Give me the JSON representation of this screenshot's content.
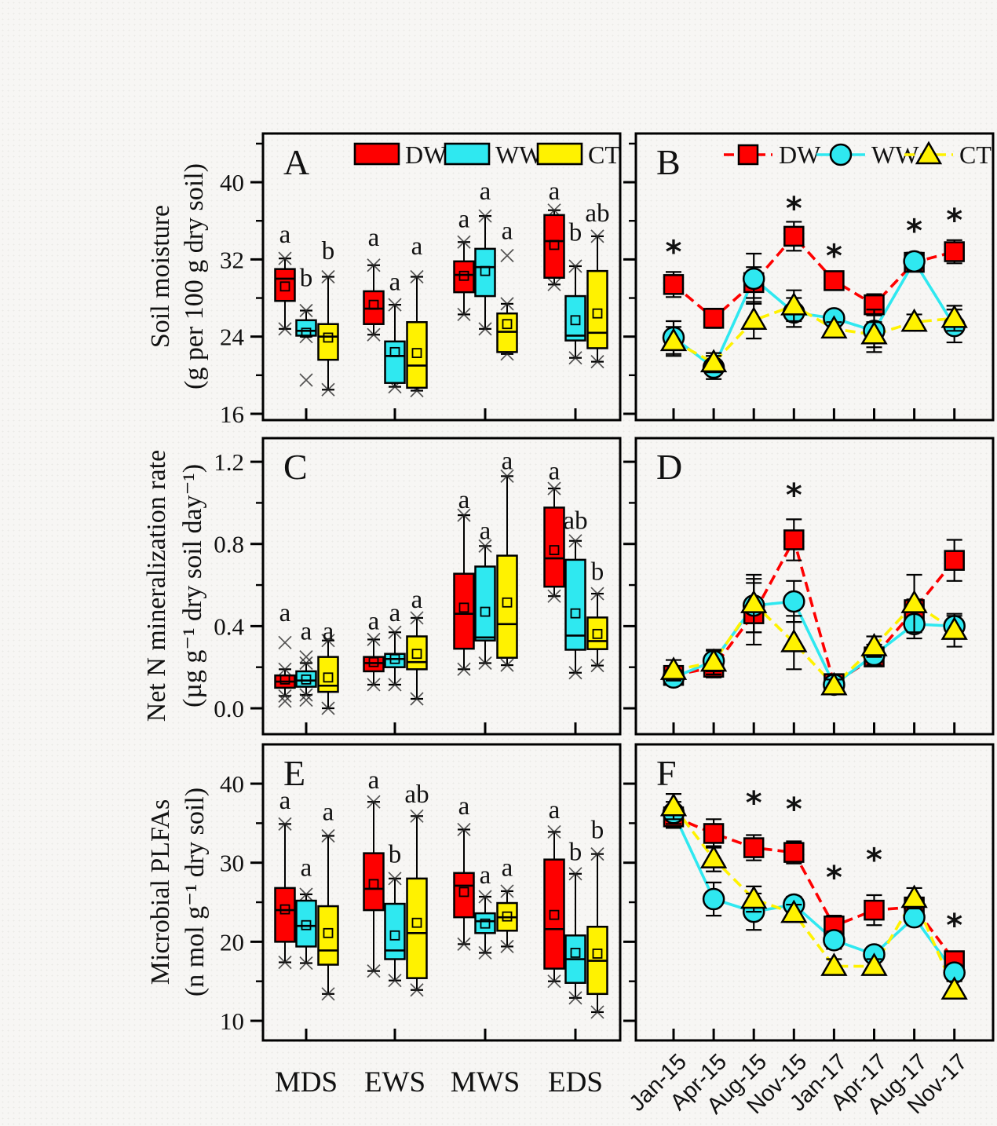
{
  "figure_bg": "#f7f6f4",
  "treatments": [
    {
      "key": "DW",
      "label": "DW",
      "color": "#fe0000",
      "marker": "square",
      "line_dash": "13 7"
    },
    {
      "key": "WW",
      "label": "WW",
      "color": "#2fe8f0",
      "marker": "circle",
      "line_dash": ""
    },
    {
      "key": "CT",
      "label": "CT",
      "color": "#fff200",
      "marker": "triangle",
      "line_dash": "13 7"
    }
  ],
  "ylabels": [
    {
      "line1": "Soil moisture",
      "line2": "(g per 100 g dry soil)"
    },
    {
      "line1": "Net N mineralization rate",
      "line2": "(µg g⁻¹ dry soil day⁻¹)"
    },
    {
      "line1": "Microbial PLFAs",
      "line2": "(n mol g⁻¹ dry soil)"
    }
  ],
  "left_categories": [
    "MDS",
    "EWS",
    "MWS",
    "EDS"
  ],
  "time_categories": [
    "Jan-15",
    "Apr-15",
    "Aug-15",
    "Nov-15",
    "Jan-17",
    "Apr-17",
    "Aug-17",
    "Nov-17"
  ],
  "chart_data": [
    {
      "id": "A",
      "letter": "A",
      "type": "box",
      "row": 0,
      "col": 0,
      "title": "Soil moisture by season",
      "ylim": [
        15.35,
        45.05
      ],
      "yticks": [
        {
          "v": 16,
          "label": "16"
        },
        {
          "v": 24,
          "label": "24"
        },
        {
          "v": 32,
          "label": "32"
        },
        {
          "v": 40,
          "label": "40"
        }
      ],
      "yminors": [
        20,
        28,
        36,
        44
      ],
      "groups": [
        {
          "name": "MDS",
          "boxes": [
            {
              "t": "DW",
              "lo": 24.8,
              "q1": 27.7,
              "med": 30.0,
              "mean": 29.2,
              "q3": 31.0,
              "hi": 32.1,
              "sig": "a",
              "sv": 34.7
            },
            {
              "t": "WW",
              "lo": 24.0,
              "q1": 24.1,
              "med": 24.6,
              "mean": 24.4,
              "q3": 25.7,
              "hi": 26.7,
              "xlo": 19.5,
              "sig": "b",
              "sv": 30.2
            },
            {
              "t": "CT",
              "lo": 18.5,
              "q1": 21.6,
              "med": 24.0,
              "mean": 23.9,
              "q3": 25.3,
              "hi": 30.2,
              "sig": "b",
              "sv": 33.0
            }
          ]
        },
        {
          "name": "EWS",
          "boxes": [
            {
              "t": "DW",
              "lo": 24.2,
              "q1": 25.3,
              "med": 26.9,
              "mean": 27.3,
              "q3": 28.7,
              "hi": 31.4,
              "sig": "a",
              "sv": 34.4
            },
            {
              "t": "WW",
              "lo": 18.8,
              "q1": 19.2,
              "med": 22.0,
              "mean": 22.4,
              "q3": 23.5,
              "hi": 27.3,
              "sig": "a",
              "sv": 29.8
            },
            {
              "t": "CT",
              "lo": 18.4,
              "q1": 18.7,
              "med": 21.0,
              "mean": 22.3,
              "q3": 25.5,
              "hi": 30.2,
              "sig": "a",
              "sv": 33.5
            }
          ]
        },
        {
          "name": "MWS",
          "boxes": [
            {
              "t": "DW",
              "lo": 26.3,
              "q1": 28.6,
              "med": 30.4,
              "mean": 30.3,
              "q3": 31.8,
              "hi": 33.8,
              "sig": "a",
              "sv": 36.3
            },
            {
              "t": "WW",
              "lo": 24.8,
              "q1": 28.2,
              "med": 31.2,
              "mean": 30.8,
              "q3": 33.1,
              "hi": 36.5,
              "sig": "a",
              "sv": 39.2
            },
            {
              "t": "CT",
              "lo": 22.2,
              "q1": 22.4,
              "med": 24.5,
              "mean": 25.3,
              "q3": 26.4,
              "hi": 27.4,
              "xhi": 32.4,
              "sig": "a",
              "sv": 35.1
            }
          ]
        },
        {
          "name": "EDS",
          "boxes": [
            {
              "t": "DW",
              "lo": 29.4,
              "q1": 30.1,
              "med": 33.9,
              "mean": 33.5,
              "q3": 36.6,
              "hi": 37.1,
              "sig": "a",
              "sv": 39.2
            },
            {
              "t": "WW",
              "lo": 21.8,
              "q1": 23.6,
              "med": 24.1,
              "mean": 25.7,
              "q3": 28.2,
              "hi": 31.3,
              "sig": "b",
              "sv": 34.9
            },
            {
              "t": "CT",
              "lo": 21.4,
              "q1": 22.8,
              "med": 24.4,
              "mean": 26.4,
              "q3": 30.8,
              "hi": 34.4,
              "sig": "ab",
              "sv": 36.9
            }
          ]
        }
      ]
    },
    {
      "id": "B",
      "letter": "B",
      "type": "line",
      "row": 0,
      "col": 1,
      "title": "Soil moisture time series",
      "ylim": [
        15.35,
        45.05
      ],
      "yticks": [
        {
          "v": 16,
          "label": "16"
        },
        {
          "v": 24,
          "label": "24"
        },
        {
          "v": 32,
          "label": "32"
        },
        {
          "v": 40,
          "label": "40"
        }
      ],
      "yminors": [
        20,
        28,
        36,
        44
      ],
      "series": [
        {
          "name": "DW",
          "values": [
            29.4,
            25.9,
            29.6,
            34.4,
            29.8,
            27.3,
            31.7,
            32.8
          ],
          "err": [
            1.3,
            1.0,
            1.6,
            1.5,
            0.9,
            1.1,
            0.6,
            1.2
          ]
        },
        {
          "name": "WW",
          "values": [
            23.9,
            20.8,
            30.0,
            26.5,
            25.9,
            24.6,
            31.8,
            25.1
          ],
          "err": [
            1.7,
            1.2,
            2.6,
            1.5,
            0.6,
            2.2,
            0.9,
            1.7
          ]
        },
        {
          "name": "CT",
          "values": [
            23.5,
            21.3,
            25.7,
            27.2,
            24.8,
            24.2,
            25.5,
            25.9
          ],
          "err": [
            1.5,
            1.0,
            1.9,
            1.6,
            0.7,
            1.3,
            0.8,
            1.3
          ]
        }
      ],
      "stars": [
        {
          "i": 0,
          "v": 32.8
        },
        {
          "i": 3,
          "v": 37.3
        },
        {
          "i": 4,
          "v": 32.4
        },
        {
          "i": 6,
          "v": 35.0
        },
        {
          "i": 7,
          "v": 36.1
        }
      ]
    },
    {
      "id": "C",
      "letter": "C",
      "type": "box",
      "row": 1,
      "col": 0,
      "title": "Net N mineralization rate by season",
      "ylim": [
        -0.126,
        1.315
      ],
      "yticks": [
        {
          "v": 0.0,
          "label": "0.0"
        },
        {
          "v": 0.4,
          "label": "0.4"
        },
        {
          "v": 0.8,
          "label": "0.8"
        },
        {
          "v": 1.2,
          "label": "1.2"
        }
      ],
      "yminors": [
        0.2,
        0.6,
        1.0
      ],
      "groups": [
        {
          "name": "MDS",
          "boxes": [
            {
              "t": "DW",
              "lo": 0.06,
              "q1": 0.1,
              "med": 0.13,
              "mean": 0.14,
              "q3": 0.16,
              "hi": 0.19,
              "xlo": 0.035,
              "xhi": 0.32,
              "sig": "a",
              "sv": 0.47
            },
            {
              "t": "WW",
              "lo": 0.065,
              "q1": 0.105,
              "med": 0.135,
              "mean": 0.14,
              "q3": 0.18,
              "hi": 0.22,
              "xlo": 0.04,
              "xhi": 0.25,
              "sig": "a",
              "sv": 0.38
            },
            {
              "t": "CT",
              "lo": 0.0,
              "q1": 0.08,
              "med": 0.11,
              "mean": 0.15,
              "q3": 0.25,
              "hi": 0.33,
              "sig": "a",
              "sv": 0.38
            }
          ]
        },
        {
          "name": "EWS",
          "boxes": [
            {
              "t": "DW",
              "lo": 0.115,
              "q1": 0.18,
              "med": 0.22,
              "mean": 0.225,
              "q3": 0.25,
              "hi": 0.335,
              "sig": "a",
              "sv": 0.43
            },
            {
              "t": "WW",
              "lo": 0.115,
              "q1": 0.2,
              "med": 0.24,
              "mean": 0.24,
              "q3": 0.265,
              "hi": 0.37,
              "sig": "a",
              "sv": 0.47
            },
            {
              "t": "CT",
              "lo": 0.046,
              "q1": 0.19,
              "med": 0.225,
              "mean": 0.265,
              "q3": 0.35,
              "hi": 0.44,
              "sig": "a",
              "sv": 0.535
            }
          ]
        },
        {
          "name": "MWS",
          "boxes": [
            {
              "t": "DW",
              "lo": 0.19,
              "q1": 0.29,
              "med": 0.46,
              "mean": 0.49,
              "q3": 0.655,
              "hi": 0.94,
              "sig": "a",
              "sv": 1.02
            },
            {
              "t": "WW",
              "lo": 0.22,
              "q1": 0.33,
              "med": 0.345,
              "mean": 0.47,
              "q3": 0.69,
              "hi": 0.79,
              "sig": "a",
              "sv": 0.87
            },
            {
              "t": "CT",
              "lo": 0.21,
              "q1": 0.246,
              "med": 0.41,
              "mean": 0.515,
              "q3": 0.743,
              "hi": 1.13,
              "sig": "a",
              "sv": 1.21
            }
          ]
        },
        {
          "name": "EDS",
          "boxes": [
            {
              "t": "DW",
              "lo": 0.546,
              "q1": 0.592,
              "med": 0.73,
              "mean": 0.77,
              "q3": 0.977,
              "hi": 1.07,
              "sig": "a",
              "sv": 1.16
            },
            {
              "t": "WW",
              "lo": 0.173,
              "q1": 0.285,
              "med": 0.354,
              "mean": 0.462,
              "q3": 0.723,
              "hi": 0.815,
              "sig": "ab",
              "sv": 0.92
            },
            {
              "t": "CT",
              "lo": 0.208,
              "q1": 0.288,
              "med": 0.327,
              "mean": 0.362,
              "q3": 0.442,
              "hi": 0.558,
              "sig": "b",
              "sv": 0.67
            }
          ]
        }
      ]
    },
    {
      "id": "D",
      "letter": "D",
      "type": "line",
      "row": 1,
      "col": 1,
      "title": "Net N mineralization rate time series",
      "ylim": [
        -0.126,
        1.315
      ],
      "yticks": [
        {
          "v": 0.0,
          "label": "0.0"
        },
        {
          "v": 0.4,
          "label": "0.4"
        },
        {
          "v": 0.8,
          "label": "0.8"
        },
        {
          "v": 1.2,
          "label": "1.2"
        }
      ],
      "yminors": [
        0.2,
        0.6,
        1.0
      ],
      "series": [
        {
          "name": "DW",
          "values": [
            0.16,
            0.2,
            0.46,
            0.82,
            0.12,
            0.25,
            0.48,
            0.72
          ],
          "err": [
            0.03,
            0.05,
            0.15,
            0.1,
            0.03,
            0.04,
            0.05,
            0.1
          ]
        },
        {
          "name": "WW",
          "values": [
            0.15,
            0.23,
            0.5,
            0.52,
            0.115,
            0.26,
            0.41,
            0.4
          ],
          "err": [
            0.03,
            0.05,
            0.13,
            0.1,
            0.03,
            0.05,
            0.07,
            0.05
          ]
        },
        {
          "name": "CT",
          "values": [
            0.185,
            0.225,
            0.51,
            0.32,
            0.11,
            0.3,
            0.51,
            0.38
          ],
          "err": [
            0.05,
            0.06,
            0.14,
            0.13,
            0.03,
            0.05,
            0.14,
            0.08
          ]
        }
      ],
      "stars": [
        {
          "i": 3,
          "v": 1.04
        }
      ]
    },
    {
      "id": "E",
      "letter": "E",
      "type": "box",
      "row": 2,
      "col": 0,
      "title": "Microbial PLFAs by season",
      "ylim": [
        7.52,
        44.97
      ],
      "yticks": [
        {
          "v": 10,
          "label": "10"
        },
        {
          "v": 20,
          "label": "20"
        },
        {
          "v": 30,
          "label": "30"
        },
        {
          "v": 40,
          "label": "40"
        }
      ],
      "yminors": [
        15,
        25,
        35
      ],
      "groups": [
        {
          "name": "MDS",
          "boxes": [
            {
              "t": "DW",
              "lo": 17.4,
              "q1": 20.0,
              "med": 24.0,
              "mean": 24.1,
              "q3": 26.8,
              "hi": 34.9,
              "sig": "a",
              "sv": 38.0
            },
            {
              "t": "WW",
              "lo": 17.3,
              "q1": 19.4,
              "med": 22.0,
              "mean": 22.1,
              "q3": 25.2,
              "hi": 26.0,
              "sig": "a",
              "sv": 29.5
            },
            {
              "t": "CT",
              "lo": 13.4,
              "q1": 17.1,
              "med": 18.9,
              "mean": 21.1,
              "q3": 24.5,
              "hi": 33.4,
              "sig": "a",
              "sv": 36.6
            }
          ]
        },
        {
          "name": "EWS",
          "boxes": [
            {
              "t": "DW",
              "lo": 16.3,
              "q1": 24.0,
              "med": 26.7,
              "mean": 27.3,
              "q3": 31.2,
              "hi": 37.7,
              "sig": "a",
              "sv": 40.6
            },
            {
              "t": "WW",
              "lo": 15.1,
              "q1": 17.8,
              "med": 18.9,
              "mean": 20.8,
              "q3": 24.8,
              "hi": 28.0,
              "sig": "b",
              "sv": 31.2
            },
            {
              "t": "CT",
              "lo": 13.9,
              "q1": 15.4,
              "med": 21.1,
              "mean": 22.4,
              "q3": 28.0,
              "hi": 35.9,
              "sig": "ab",
              "sv": 38.8
            }
          ]
        },
        {
          "name": "MWS",
          "boxes": [
            {
              "t": "DW",
              "lo": 19.7,
              "q1": 23.1,
              "med": 27.1,
              "mean": 26.3,
              "q3": 28.7,
              "hi": 34.2,
              "sig": "a",
              "sv": 37.3
            },
            {
              "t": "WW",
              "lo": 18.6,
              "q1": 21.1,
              "med": 22.6,
              "mean": 22.3,
              "q3": 23.6,
              "hi": 25.7,
              "sig": "a",
              "sv": 28.6
            },
            {
              "t": "CT",
              "lo": 19.4,
              "q1": 21.4,
              "med": 23.1,
              "mean": 23.2,
              "q3": 24.9,
              "hi": 26.4,
              "sig": "a",
              "sv": 29.5
            }
          ]
        },
        {
          "name": "EDS",
          "boxes": [
            {
              "t": "DW",
              "lo": 15.0,
              "q1": 16.6,
              "med": 21.6,
              "mean": 23.4,
              "q3": 30.4,
              "hi": 33.9,
              "sig": "a",
              "sv": 36.8
            },
            {
              "t": "WW",
              "lo": 12.9,
              "q1": 14.8,
              "med": 17.8,
              "mean": 18.6,
              "q3": 20.8,
              "hi": 28.6,
              "sig": "b",
              "sv": 31.5
            },
            {
              "t": "CT",
              "lo": 11.1,
              "q1": 13.4,
              "med": 17.6,
              "mean": 18.5,
              "q3": 21.9,
              "hi": 31.1,
              "sig": "b",
              "sv": 34.3
            }
          ]
        }
      ]
    },
    {
      "id": "F",
      "letter": "F",
      "type": "line",
      "row": 2,
      "col": 1,
      "title": "Microbial PLFAs time series",
      "ylim": [
        7.52,
        44.97
      ],
      "yticks": [
        {
          "v": 10,
          "label": "10"
        },
        {
          "v": 20,
          "label": "20"
        },
        {
          "v": 30,
          "label": "30"
        },
        {
          "v": 40,
          "label": "40"
        }
      ],
      "yminors": [
        15,
        25,
        35
      ],
      "series": [
        {
          "name": "DW",
          "values": [
            35.8,
            33.7,
            31.9,
            31.3,
            22.0,
            24.0,
            24.4,
            17.6
          ],
          "err": [
            1.4,
            1.8,
            1.6,
            1.4,
            1.3,
            1.9,
            0.9,
            1.1
          ]
        },
        {
          "name": "WW",
          "values": [
            36.3,
            25.4,
            23.8,
            24.7,
            20.2,
            18.4,
            23.1,
            16.1
          ],
          "err": [
            1.4,
            2.1,
            2.3,
            1.0,
            1.1,
            0.9,
            1.0,
            1.0
          ]
        },
        {
          "name": "CT",
          "values": [
            37.1,
            30.5,
            25.4,
            23.6,
            16.9,
            16.9,
            25.5,
            13.9
          ],
          "err": [
            1.6,
            1.6,
            1.6,
            1.1,
            0.9,
            0.9,
            1.3,
            1.1
          ]
        }
      ],
      "stars": [
        {
          "i": 2,
          "v": 37.6
        },
        {
          "i": 3,
          "v": 36.8
        },
        {
          "i": 4,
          "v": 28.2
        },
        {
          "i": 5,
          "v": 30.4
        },
        {
          "i": 7,
          "v": 22.1
        }
      ]
    }
  ]
}
